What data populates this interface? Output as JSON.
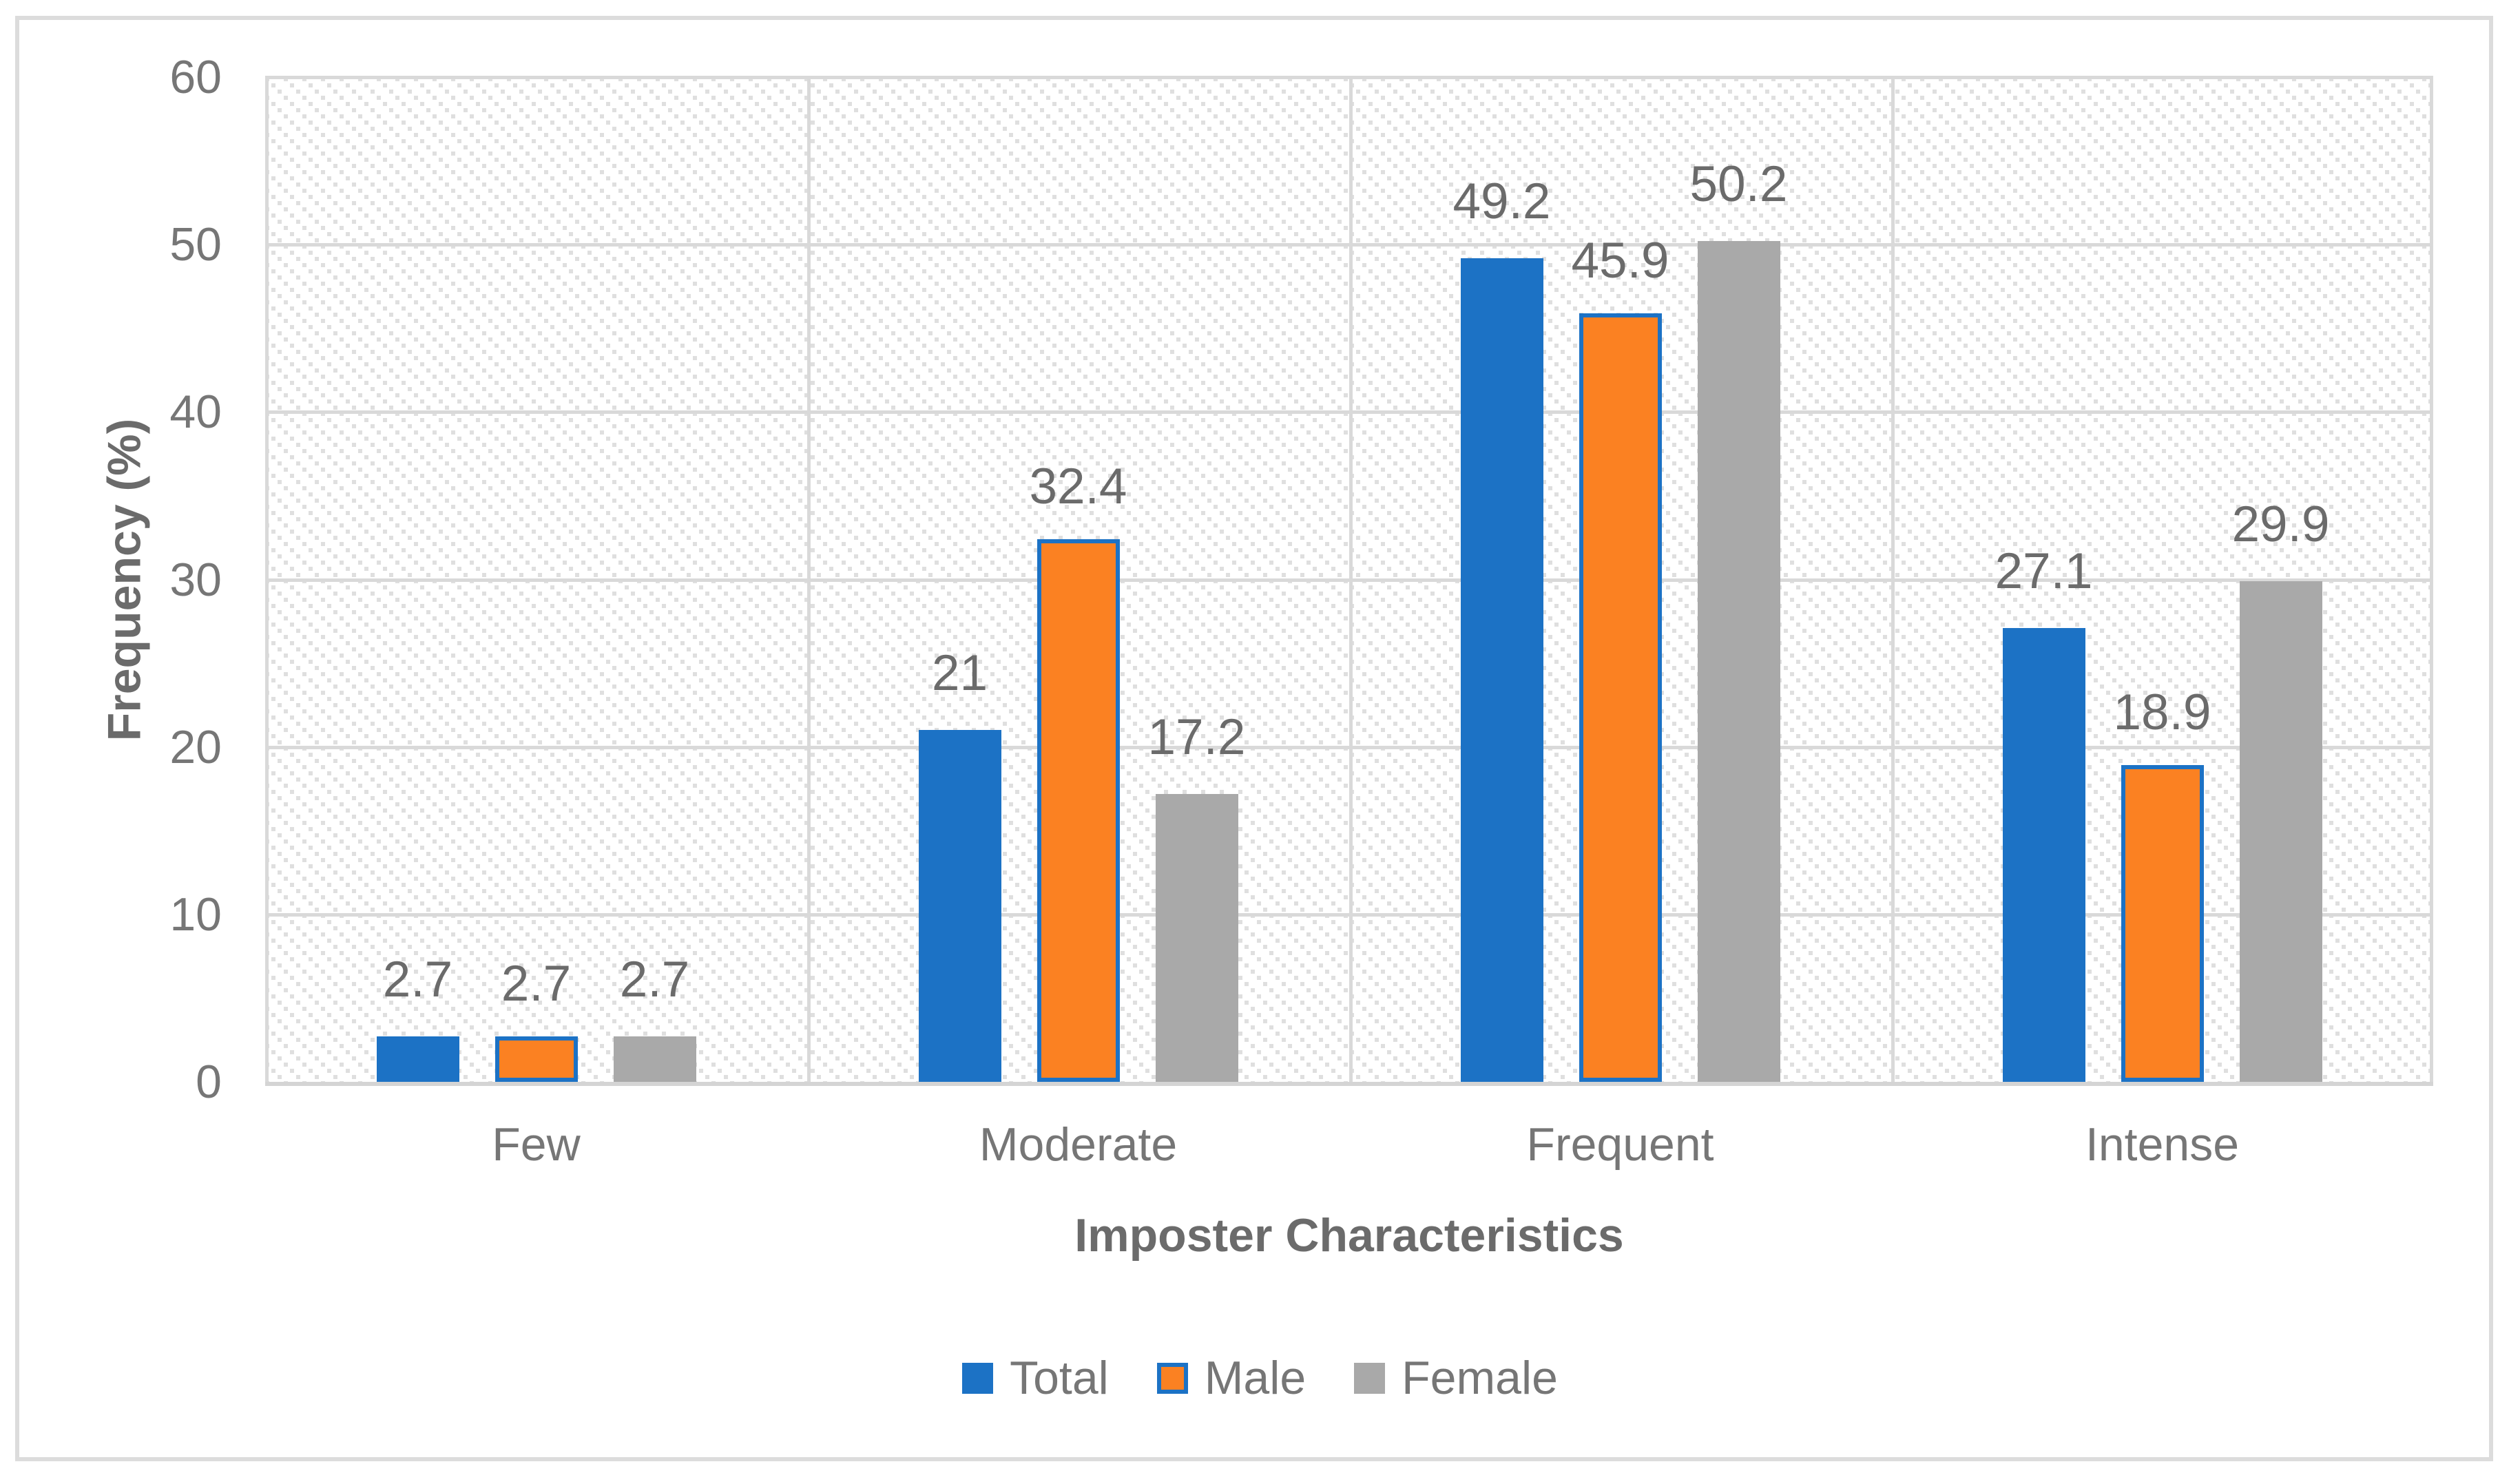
{
  "chart_data": {
    "type": "bar",
    "title": "",
    "xlabel": "Imposter Characteristics",
    "ylabel": "Frequency (%)",
    "categories": [
      "Few",
      "Moderate",
      "Frequent",
      "Intense"
    ],
    "series": [
      {
        "name": "Total",
        "fill": "#1C72C5",
        "stroke": "#1C72C5",
        "values": [
          2.7,
          21,
          49.2,
          27.1
        ],
        "labels": [
          "2.7",
          "21",
          "49.2",
          "27.1"
        ]
      },
      {
        "name": "Male",
        "fill": "#FB8122",
        "stroke": "#1C72C5",
        "values": [
          2.7,
          32.4,
          45.9,
          18.9
        ],
        "labels": [
          "2.7",
          "32.4",
          "45.9",
          "18.9"
        ]
      },
      {
        "name": "Female",
        "fill": "#A9A9A9",
        "stroke": "#A9A9A9",
        "values": [
          2.7,
          17.2,
          50.2,
          29.9
        ],
        "labels": [
          "2.7",
          "17.2",
          "50.2",
          "29.9"
        ]
      }
    ],
    "ylim": [
      0,
      60
    ],
    "yticks": [
      "0",
      "10",
      "20",
      "30",
      "40",
      "50",
      "60"
    ],
    "grid": "horizontal gridlines every 10, vertical category separators",
    "plot_background": "diagonal-hatch",
    "legend_position": "bottom",
    "style": {
      "gridline_color": "#D9D9D9",
      "axis_line_color": "#D4D4D4",
      "frame_border_color": "#DCDCDC",
      "hatch_dot_color": "#DFDFDF",
      "tick_text_color": "#767676",
      "data_label_color": "#6B6B6B",
      "axis_title_color": "#6B6B6B"
    }
  }
}
